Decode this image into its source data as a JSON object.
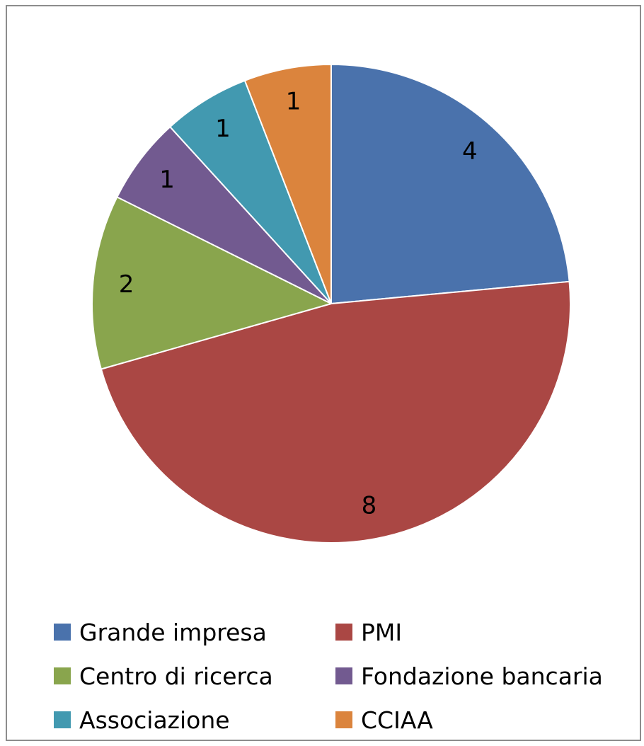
{
  "chart_data": {
    "type": "pie",
    "title": "",
    "categories": [
      "Grande impresa",
      "PMI",
      "Centro di ricerca",
      "Fondazione bancaria",
      "Associazione",
      "CCIAA"
    ],
    "values": [
      4,
      8,
      2,
      1,
      1,
      1
    ],
    "colors": [
      "#4A72AC",
      "#AA4744",
      "#89A54D",
      "#725A90",
      "#4299B0",
      "#DB843D"
    ],
    "data_labels": [
      "4",
      "8",
      "2",
      "1",
      "1",
      "1"
    ],
    "start_angle": "12 o'clock",
    "direction": "clockwise",
    "legend": {
      "position": "bottom",
      "entries": [
        {
          "label": "Grande impresa",
          "color": "#4A72AC"
        },
        {
          "label": "PMI",
          "color": "#AA4744"
        },
        {
          "label": "Centro di ricerca",
          "color": "#89A54D"
        },
        {
          "label": "Fondazione bancaria",
          "color": "#725A90"
        },
        {
          "label": "Associazione",
          "color": "#4299B0"
        },
        {
          "label": "CCIAA",
          "color": "#DB843D"
        }
      ]
    }
  }
}
